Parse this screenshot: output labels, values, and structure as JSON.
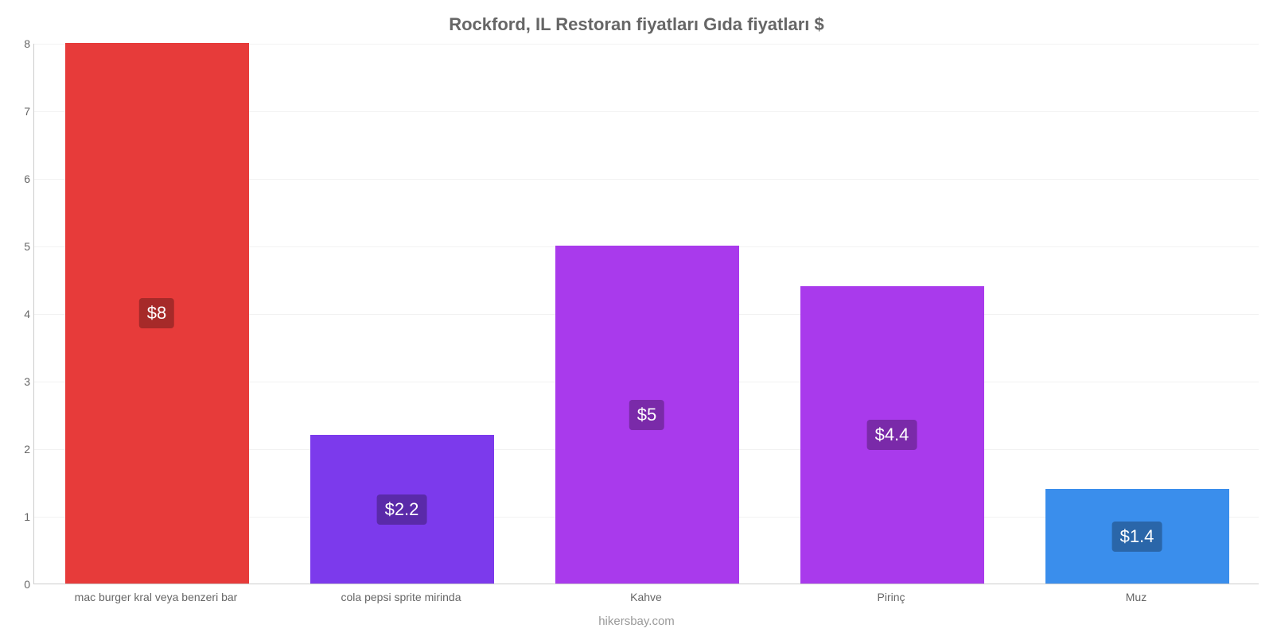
{
  "chart": {
    "type": "bar",
    "title": "Rockford, IL Restoran fiyatları Gıda fiyatları $",
    "title_color": "#666666",
    "title_fontsize": 22,
    "attribution": "hikersbay.com",
    "attribution_color": "#999999",
    "background_color": "#ffffff",
    "grid_color": "#f2f2f2",
    "axis_color": "#cccccc",
    "tick_label_color": "#666666",
    "tick_label_fontsize": 14,
    "ylim": [
      0,
      8
    ],
    "ytick_step": 1,
    "yticks": [
      0,
      1,
      2,
      3,
      4,
      5,
      6,
      7,
      8
    ],
    "bar_width_ratio": 0.75,
    "value_label_fontsize": 22,
    "value_label_text_color": "#ffffff",
    "data": [
      {
        "category": "mac burger kral veya benzeri bar",
        "value": 8,
        "value_label": "$8",
        "bar_color": "#e73b3a",
        "label_bg_color": "#a62a29"
      },
      {
        "category": "cola pepsi sprite mirinda",
        "value": 2.2,
        "value_label": "$2.2",
        "bar_color": "#7c3aec",
        "label_bg_color": "#5a2aa9"
      },
      {
        "category": "Kahve",
        "value": 5,
        "value_label": "$5",
        "bar_color": "#a93aec",
        "label_bg_color": "#7a2aa9"
      },
      {
        "category": "Pirinç",
        "value": 4.4,
        "value_label": "$4.4",
        "bar_color": "#a93aec",
        "label_bg_color": "#7a2aa9"
      },
      {
        "category": "Muz",
        "value": 1.4,
        "value_label": "$1.4",
        "bar_color": "#3a8eec",
        "label_bg_color": "#2a66a9"
      }
    ]
  }
}
